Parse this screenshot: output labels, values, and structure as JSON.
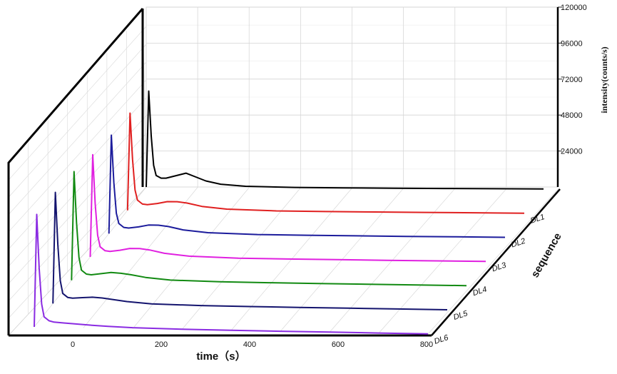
{
  "chart_data": {
    "type": "line",
    "projection": "3d-waterfall",
    "xlabel": "time（s）",
    "ylabel": "intensity(counts/s)",
    "zlabel": "sequence",
    "xticks": [
      "0",
      "200",
      "400",
      "600",
      "800"
    ],
    "yticks": [
      "24000",
      "48000",
      "72000",
      "96000",
      "120000"
    ],
    "xlim": [
      0,
      800
    ],
    "ylim": [
      0,
      120000
    ],
    "grid": true,
    "x": [
      0,
      5,
      10,
      15,
      20,
      30,
      40,
      60,
      80,
      100,
      120,
      150,
      200,
      300,
      400,
      500,
      600,
      700,
      800
    ],
    "series": [
      {
        "name": "",
        "color": "#000000",
        "values": [
          0,
          75000,
          40000,
          17000,
          9000,
          7000,
          7000,
          9000,
          11000,
          8000,
          5000,
          2500,
          1000,
          300,
          150,
          100,
          100,
          100,
          100
        ]
      },
      {
        "name": "DL1",
        "color": "#e02020",
        "values": [
          0,
          76000,
          40000,
          16000,
          8000,
          5000,
          4500,
          5500,
          7000,
          7000,
          6000,
          3500,
          1500,
          400,
          200,
          150,
          100,
          100,
          100
        ]
      },
      {
        "name": "DL2",
        "color": "#1c1c9c",
        "values": [
          0,
          77000,
          40000,
          16000,
          8000,
          5000,
          4500,
          5500,
          7000,
          7000,
          6000,
          3500,
          1500,
          400,
          200,
          150,
          100,
          100,
          100
        ]
      },
      {
        "name": "DL3",
        "color": "#e020e0",
        "values": [
          0,
          80000,
          42000,
          17000,
          8000,
          5000,
          4500,
          5500,
          7000,
          7000,
          6000,
          3500,
          1500,
          400,
          200,
          150,
          100,
          100,
          100
        ]
      },
      {
        "name": "DL4",
        "color": "#128a12",
        "values": [
          0,
          85000,
          45000,
          18000,
          8000,
          5000,
          4500,
          5500,
          6500,
          6000,
          5000,
          3000,
          1200,
          400,
          200,
          150,
          100,
          100,
          100
        ]
      },
      {
        "name": "DL5",
        "color": "#14146e",
        "values": [
          0,
          87000,
          46000,
          18000,
          8000,
          5000,
          4500,
          5000,
          5500,
          5000,
          4000,
          2500,
          1000,
          300,
          150,
          100,
          100,
          100,
          100
        ]
      },
      {
        "name": "DL6",
        "color": "#8a2be2",
        "values": [
          0,
          88000,
          46000,
          18000,
          8000,
          5000,
          4000,
          3500,
          3000,
          2500,
          2000,
          1500,
          800,
          300,
          150,
          100,
          100,
          100,
          100
        ]
      }
    ]
  }
}
